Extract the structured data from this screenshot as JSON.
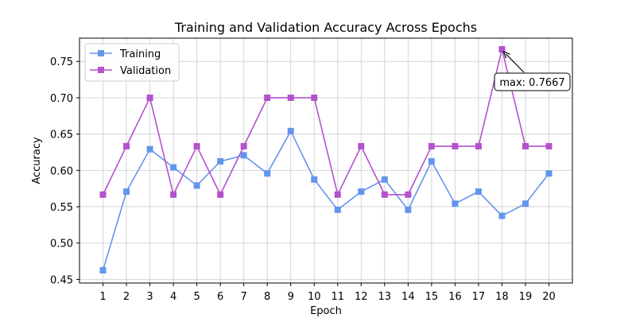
{
  "chart_data": {
    "type": "line",
    "title": "Training and Validation Accuracy Across Epochs",
    "xlabel": "Epoch",
    "ylabel": "Accuracy",
    "x": [
      1,
      2,
      3,
      4,
      5,
      6,
      7,
      8,
      9,
      10,
      11,
      12,
      13,
      14,
      15,
      16,
      17,
      18,
      19,
      20
    ],
    "xticks": [
      "1",
      "2",
      "3",
      "4",
      "5",
      "6",
      "7",
      "8",
      "9",
      "10",
      "11",
      "12",
      "13",
      "14",
      "15",
      "16",
      "17",
      "18",
      "19",
      "20"
    ],
    "xlim": [
      0.0,
      21.0
    ],
    "ylim": [
      0.445,
      0.782
    ],
    "yticks": [
      "0.45",
      "0.50",
      "0.55",
      "0.60",
      "0.65",
      "0.70",
      "0.75"
    ],
    "grid": true,
    "legend_position": "top-left",
    "series": [
      {
        "name": "Training",
        "color": "#6495ED",
        "marker": "square",
        "values": [
          0.4625,
          0.5708,
          0.6292,
          0.6042,
          0.5792,
          0.6125,
          0.6208,
          0.5958,
          0.6542,
          0.5875,
          0.5458,
          0.5708,
          0.5875,
          0.5458,
          0.6125,
          0.5542,
          0.5708,
          0.5375,
          0.5542,
          0.5958
        ]
      },
      {
        "name": "Validation",
        "color": "#B452CD",
        "marker": "square",
        "values": [
          0.5667,
          0.6333,
          0.7,
          0.5667,
          0.6333,
          0.5667,
          0.6333,
          0.7,
          0.7,
          0.7,
          0.5667,
          0.6333,
          0.5667,
          0.5667,
          0.6333,
          0.6333,
          0.6333,
          0.7667,
          0.6333,
          0.6333
        ]
      }
    ],
    "annotations": [
      {
        "text": "max: 0.7667",
        "x": 18,
        "y": 0.7667
      }
    ]
  }
}
